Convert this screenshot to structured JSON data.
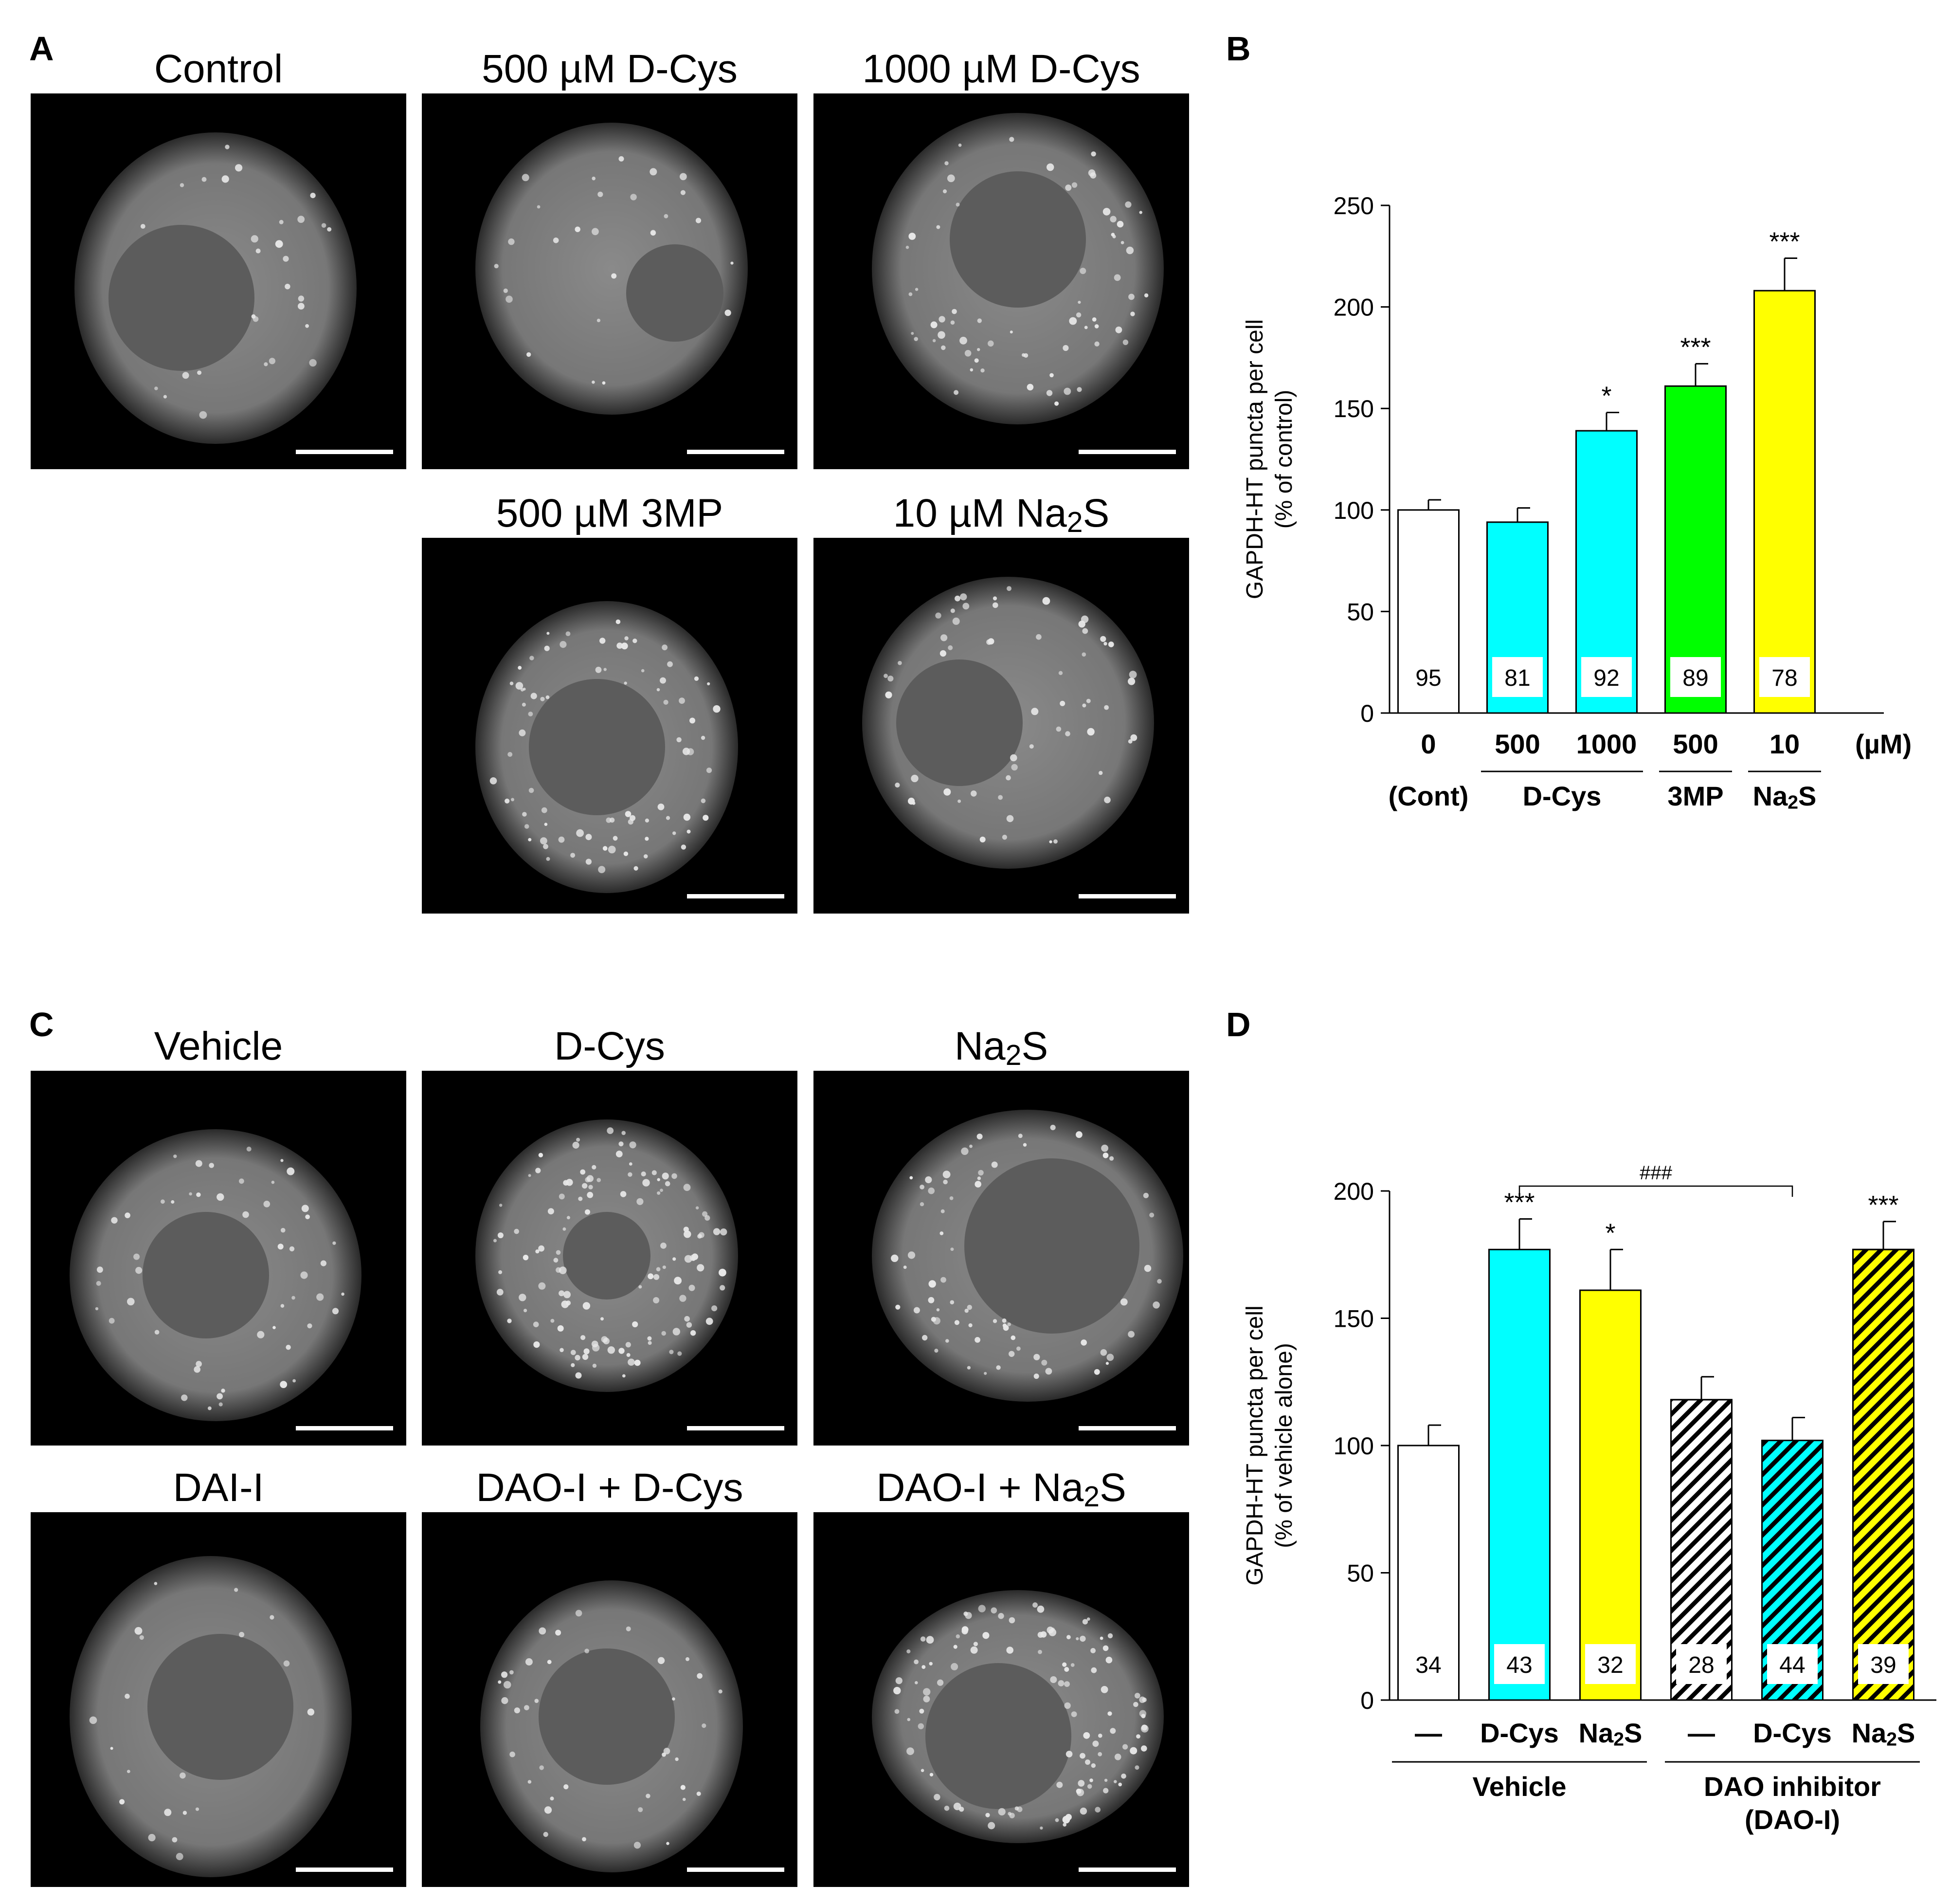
{
  "panels": {
    "A": {
      "letter": "A",
      "images": [
        {
          "title": "Control"
        },
        {
          "title": "500 µM D-Cys"
        },
        {
          "title": "1000 µM D-Cys"
        },
        {
          "title_pre": "500 µM 3MP",
          "title_sub": "",
          "title_post": ""
        },
        {
          "title_pre": "10 µM Na",
          "title_sub": "2",
          "title_post": "S"
        }
      ]
    },
    "C": {
      "letter": "C",
      "images": [
        {
          "title_pre": "Vehicle",
          "title_sub": "",
          "title_post": ""
        },
        {
          "title_pre": "D-Cys",
          "title_sub": "",
          "title_post": ""
        },
        {
          "title_pre": "Na",
          "title_sub": "2",
          "title_post": "S"
        },
        {
          "title_pre": "DAI-I",
          "title_sub": "",
          "title_post": ""
        },
        {
          "title_pre": "DAO-I + D-Cys",
          "title_sub": "",
          "title_post": ""
        },
        {
          "title_pre": "DAO-I + Na",
          "title_sub": "2",
          "title_post": "S"
        }
      ]
    },
    "B": {
      "letter": "B"
    },
    "D": {
      "letter": "D"
    }
  },
  "chart_data": [
    {
      "panel": "B",
      "type": "bar",
      "ylabel_line1": "GAPDH-HT puncta per cell",
      "ylabel_line2": "(% of control)",
      "ylim": [
        0,
        250
      ],
      "yticks": [
        0,
        50,
        100,
        150,
        200,
        250
      ],
      "bars": [
        {
          "value": 100,
          "error": 5,
          "n": "95",
          "color": "#ffffff",
          "hatched": false,
          "sig": ""
        },
        {
          "value": 94,
          "error": 7,
          "n": "81",
          "color": "#00ffff",
          "hatched": false,
          "sig": ""
        },
        {
          "value": 139,
          "error": 9,
          "n": "92",
          "color": "#00ffff",
          "hatched": false,
          "sig": "*"
        },
        {
          "value": 161,
          "error": 11,
          "n": "89",
          "color": "#00ff00",
          "hatched": false,
          "sig": "***"
        },
        {
          "value": 208,
          "error": 16,
          "n": "78",
          "color": "#ffff00",
          "hatched": false,
          "sig": "***"
        }
      ],
      "tick_labels": [
        "0",
        "500",
        "1000",
        "500",
        "10"
      ],
      "unit_label": "(µM)",
      "groups": [
        {
          "label_pre": "(Cont)",
          "label_sub": "",
          "label_post": "",
          "start": 0,
          "end": 0,
          "line": false
        },
        {
          "label_pre": "D-Cys",
          "label_sub": "",
          "label_post": "",
          "start": 1,
          "end": 2,
          "line": true
        },
        {
          "label_pre": "3MP",
          "label_sub": "",
          "label_post": "",
          "start": 3,
          "end": 3,
          "line": true
        },
        {
          "label_pre": "Na",
          "label_sub": "2",
          "label_post": "S",
          "start": 4,
          "end": 4,
          "line": true
        }
      ]
    },
    {
      "panel": "D",
      "type": "bar",
      "ylabel_line1": "GAPDH-HT puncta per cell",
      "ylabel_line2": "(% of vehicle alone)",
      "ylim": [
        0,
        200
      ],
      "yticks": [
        0,
        50,
        100,
        150,
        200
      ],
      "bars": [
        {
          "value": 100,
          "error": 8,
          "n": "34",
          "color": "#ffffff",
          "hatched": false,
          "sig": ""
        },
        {
          "value": 177,
          "error": 12,
          "n": "43",
          "color": "#00ffff",
          "hatched": false,
          "sig": "***"
        },
        {
          "value": 161,
          "error": 16,
          "n": "32",
          "color": "#ffff00",
          "hatched": false,
          "sig": "*"
        },
        {
          "value": 118,
          "error": 9,
          "n": "28",
          "color": "#ffffff",
          "hatched": true,
          "sig": ""
        },
        {
          "value": 102,
          "error": 9,
          "n": "44",
          "color": "#00ffff",
          "hatched": true,
          "sig": ""
        },
        {
          "value": 177,
          "error": 11,
          "n": "39",
          "color": "#ffff00",
          "hatched": true,
          "sig": "***"
        }
      ],
      "tick_labels": [
        {
          "pre": "—",
          "sub": "",
          "post": ""
        },
        {
          "pre": "D-Cys",
          "sub": "",
          "post": ""
        },
        {
          "pre": "Na",
          "sub": "2",
          "post": "S"
        },
        {
          "pre": "—",
          "sub": "",
          "post": ""
        },
        {
          "pre": "D-Cys",
          "sub": "",
          "post": ""
        },
        {
          "pre": "Na",
          "sub": "2",
          "post": "S"
        }
      ],
      "groups": [
        {
          "label": "Vehicle",
          "label_line2": "",
          "start": 0,
          "end": 2
        },
        {
          "label": "DAO inhibitor",
          "label_line2": "(DAO-I)",
          "start": 3,
          "end": 5
        }
      ],
      "comparison": {
        "from": 1,
        "to": 4,
        "label": "###"
      }
    }
  ]
}
